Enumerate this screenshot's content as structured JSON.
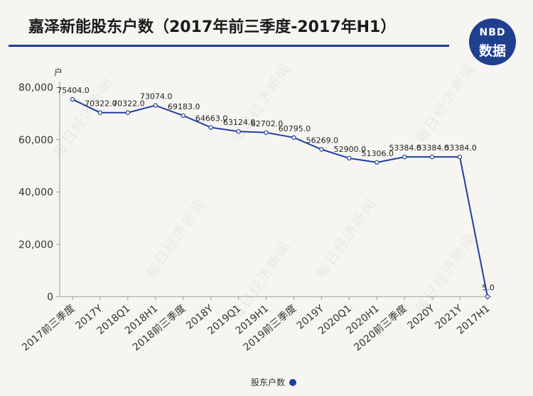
{
  "header": {
    "title": "嘉泽新能股东户数（2017年前三季度-2017年H1）",
    "logo_top": "NBD",
    "logo_bottom": "数据"
  },
  "watermark_text": "每日经济新闻",
  "colors": {
    "accent": "#1f3f9f",
    "title_rule": "#1f3f8f",
    "logo_bg": "#1f3f8f"
  },
  "chart_data": {
    "type": "line",
    "ylabel": "户",
    "ylim": [
      0,
      80000
    ],
    "yticks": [
      0,
      20000,
      40000,
      60000,
      80000
    ],
    "ytick_labels": [
      "0",
      "20,000",
      "40,000",
      "60,000",
      "80,000"
    ],
    "categories": [
      "2017前三季度",
      "2017Y",
      "2018Q1",
      "2018H1",
      "2018前三季度",
      "2018Y",
      "2019Q1",
      "2019H1",
      "2019前三季度",
      "2019Y",
      "2020Q1",
      "2020H1",
      "2020前三季度",
      "2020Y",
      "2021Y",
      "2017H1"
    ],
    "series": [
      {
        "name": "股东户数",
        "values": [
          75404.0,
          70322.0,
          70322.0,
          73074.0,
          69183.0,
          64663.0,
          63124.0,
          62702.0,
          60795.0,
          56269.0,
          52900.0,
          51306.0,
          53384.0,
          53384.0,
          53384.0,
          5.0
        ],
        "labels": [
          "75404.0",
          "70322.0",
          "70322.0",
          "73074.0",
          "69183.0",
          "64663.0",
          "63124.0",
          "62702.0",
          "60795.0",
          "56269.0",
          "52900.0",
          "51306.0",
          "53384.0",
          "53384.0",
          "53384.0",
          "5.0"
        ],
        "color": "#1f3f9f"
      }
    ],
    "grid": false,
    "legend_position": "bottom"
  }
}
